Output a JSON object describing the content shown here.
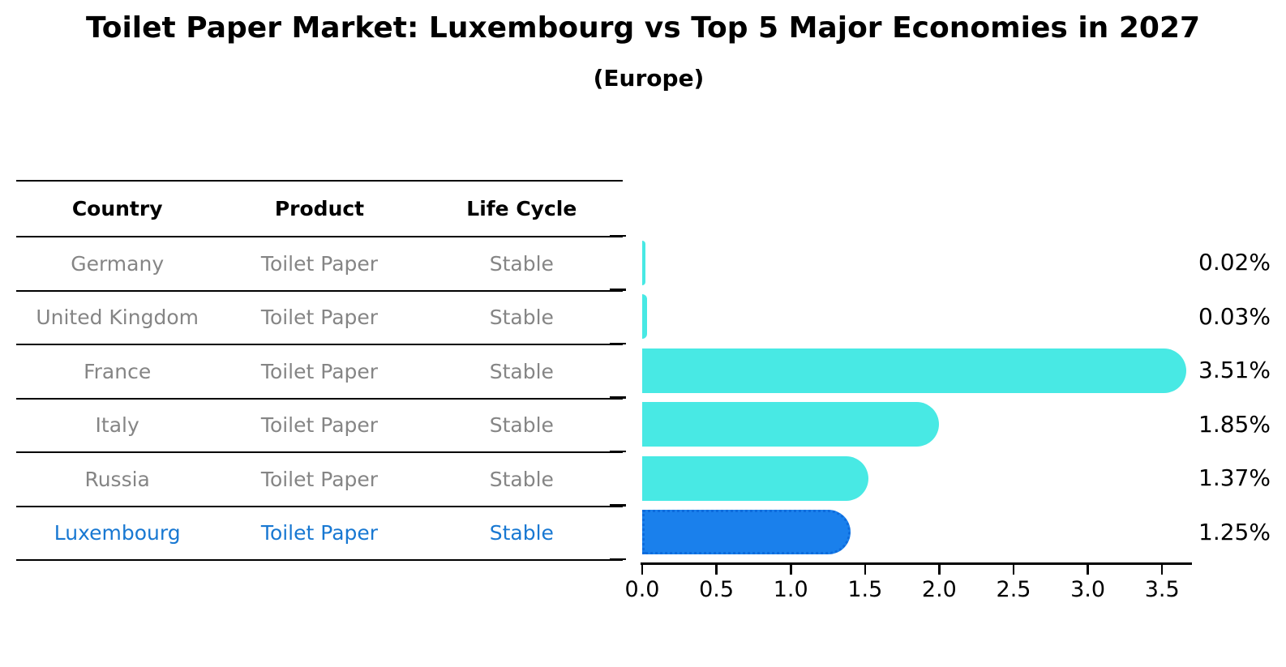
{
  "title": "Toilet Paper Market: Luxembourg vs Top 5 Major Economies in 2027",
  "subtitle": "(Europe)",
  "table": {
    "headers": [
      "Country",
      "Product",
      "Life Cycle"
    ],
    "rows": [
      {
        "country": "Germany",
        "product": "Toilet Paper",
        "life_cycle": "Stable",
        "highlight": false
      },
      {
        "country": "United Kingdom",
        "product": "Toilet Paper",
        "life_cycle": "Stable",
        "highlight": false
      },
      {
        "country": "France",
        "product": "Toilet Paper",
        "life_cycle": "Stable",
        "highlight": false
      },
      {
        "country": "Italy",
        "product": "Toilet Paper",
        "life_cycle": "Stable",
        "highlight": false
      },
      {
        "country": "Russia",
        "product": "Toilet Paper",
        "life_cycle": "Stable",
        "highlight": true
      }
    ],
    "highlight_row": {
      "country": "Luxembourg",
      "product": "Toilet Paper",
      "life_cycle": "Stable"
    }
  },
  "chart_data": {
    "type": "bar",
    "orientation": "horizontal",
    "title": "Toilet Paper Market: Luxembourg vs Top 5 Major Economies in 2027",
    "subtitle": "(Europe)",
    "categories": [
      "Germany",
      "United Kingdom",
      "France",
      "Italy",
      "Russia",
      "Luxembourg"
    ],
    "values": [
      0.02,
      0.03,
      3.51,
      1.85,
      1.37,
      1.25
    ],
    "value_labels": [
      "0.02%",
      "0.03%",
      "3.51%",
      "1.85%",
      "1.37%",
      "1.25%"
    ],
    "x_ticks": [
      "0.0",
      "0.5",
      "1.0",
      "1.5",
      "2.0",
      "2.5",
      "3.0",
      "3.5"
    ],
    "xlim": [
      0,
      3.7
    ],
    "grid": false,
    "legend": "none",
    "highlight_index": 5,
    "colors": {
      "bar": "#48E9E4",
      "highlight_bar": "#1A80EC",
      "highlight_border": "#0D6BDC",
      "muted_text": "#858585",
      "highlight_text": "#1878D2",
      "axis": "#000000"
    }
  }
}
